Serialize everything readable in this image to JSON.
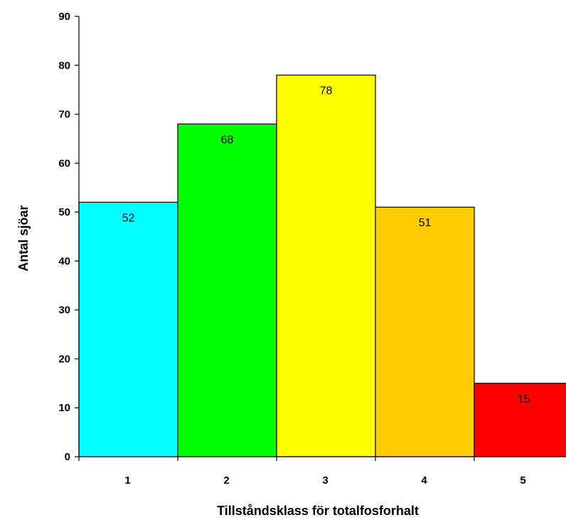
{
  "chart_data": {
    "type": "bar",
    "title": "",
    "xlabel": "Tillståndsklass för totalfosforhalt",
    "ylabel": "Antal sjöar",
    "categories": [
      "1",
      "2",
      "3",
      "4",
      "5"
    ],
    "values": [
      52,
      68,
      78,
      51,
      15
    ],
    "colors": [
      "#00FFFF",
      "#00FF00",
      "#FFFF00",
      "#FFCC00",
      "#FF0000"
    ],
    "ylim": [
      0,
      90
    ],
    "yticks": [
      0,
      10,
      20,
      30,
      40,
      50,
      60,
      70,
      80,
      90
    ],
    "grid": false,
    "legend": "none"
  }
}
